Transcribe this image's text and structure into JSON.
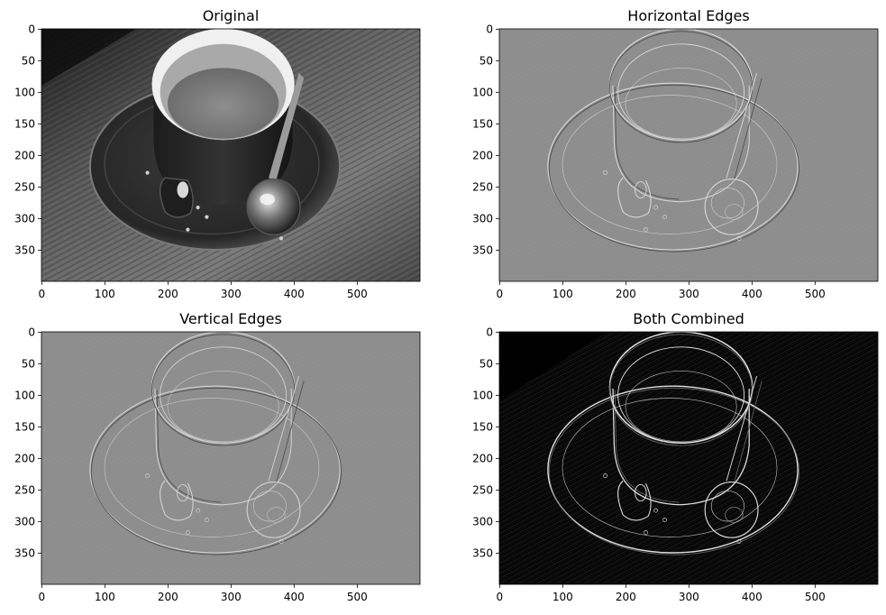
{
  "chart_data": [
    {
      "type": "image",
      "title": "Original",
      "xlim": [
        0,
        599
      ],
      "ylim": [
        399,
        0
      ],
      "xticks": [
        0,
        100,
        200,
        300,
        400,
        500
      ],
      "yticks": [
        0,
        50,
        100,
        150,
        200,
        250,
        300,
        350
      ],
      "colormap": "gray",
      "content": "original"
    },
    {
      "type": "image",
      "title": "Horizontal Edges",
      "xlim": [
        0,
        599
      ],
      "ylim": [
        399,
        0
      ],
      "xticks": [
        0,
        100,
        200,
        300,
        400,
        500
      ],
      "yticks": [
        0,
        50,
        100,
        150,
        200,
        250,
        300,
        350
      ],
      "colormap": "gray",
      "content": "relief-horizontal"
    },
    {
      "type": "image",
      "title": "Vertical Edges",
      "xlim": [
        0,
        599
      ],
      "ylim": [
        399,
        0
      ],
      "xticks": [
        0,
        100,
        200,
        300,
        400,
        500
      ],
      "yticks": [
        0,
        50,
        100,
        150,
        200,
        250,
        300,
        350
      ],
      "colormap": "gray",
      "content": "relief-vertical"
    },
    {
      "type": "image",
      "title": "Both Combined",
      "xlim": [
        0,
        599
      ],
      "ylim": [
        399,
        0
      ],
      "xticks": [
        0,
        100,
        200,
        300,
        400,
        500
      ],
      "yticks": [
        0,
        50,
        100,
        150,
        200,
        250,
        300,
        350
      ],
      "colormap": "gray",
      "content": "magnitude"
    }
  ]
}
